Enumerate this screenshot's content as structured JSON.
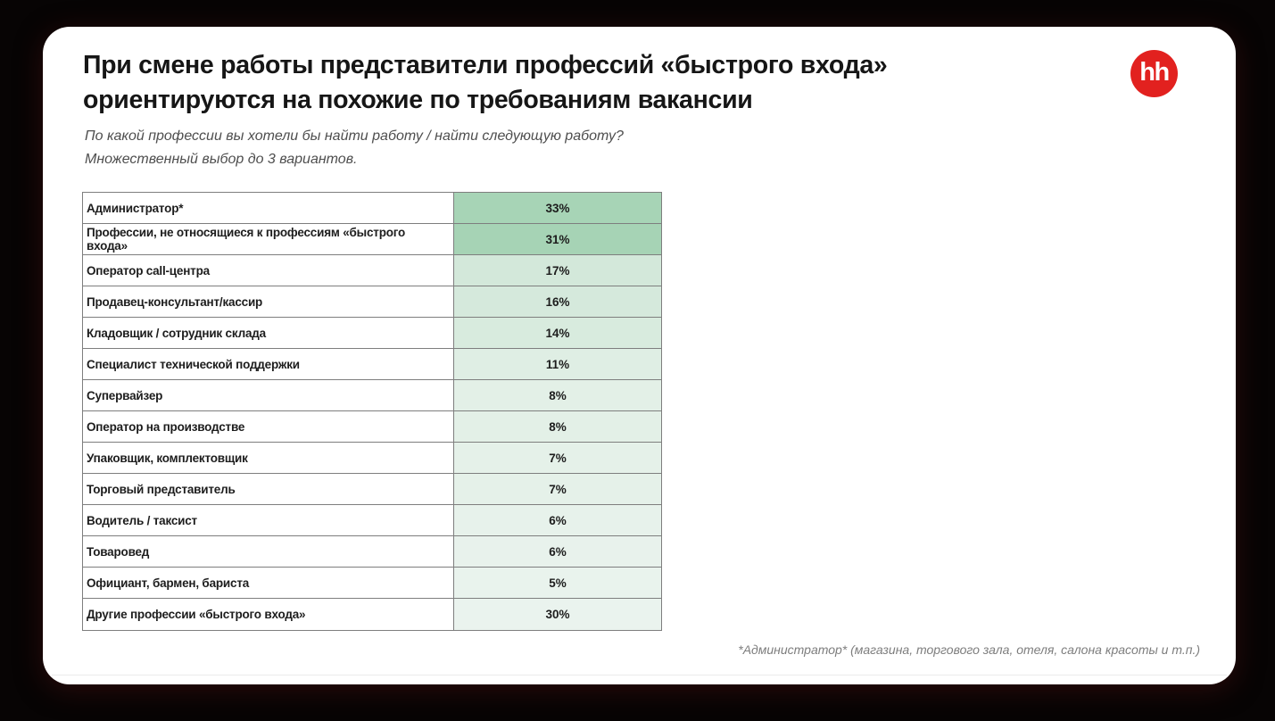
{
  "page": {
    "background_color": "#070404",
    "card_color": "#ffffff"
  },
  "logo": {
    "text": "hh",
    "background_color": "#e2211f",
    "text_color": "#ffffff"
  },
  "chart_data": {
    "type": "table",
    "title": "При смене работы представители профессий «быстрого входа» ориентируются на похожие по требованиям вакансии",
    "title_lines": [
      "При смене работы представители профессий «быстрого входа»",
      "ориентируются на похожие по требованиям вакансии"
    ],
    "subtitle_lines": [
      "По какой профессии вы хотели бы найти работу / найти следующую работу?",
      "Множественный выбор до 3 вариантов."
    ],
    "value_unit": "percent",
    "legend_position": "none",
    "grid": true,
    "rows": [
      {
        "label": "Администратор*",
        "value": 33,
        "display": "33%",
        "cell_color": "#a7d4b6"
      },
      {
        "label": "Профессии, не относящиеся к профессиям «быстрого входа»",
        "value": 31,
        "display": "31%",
        "cell_color": "#a6d3b5"
      },
      {
        "label": "Оператор call-центра",
        "value": 17,
        "display": "17%",
        "cell_color": "#d3e8da"
      },
      {
        "label": "Продавец-консультант/кассир",
        "value": 16,
        "display": "16%",
        "cell_color": "#d5e9dc"
      },
      {
        "label": "Кладовщик / сотрудник склада",
        "value": 14,
        "display": "14%",
        "cell_color": "#d8ebde"
      },
      {
        "label": "Специалист технической поддержки",
        "value": 11,
        "display": "11%",
        "cell_color": "#dfeee4"
      },
      {
        "label": "Супервайзер",
        "value": 8,
        "display": "8%",
        "cell_color": "#e3f0e7"
      },
      {
        "label": "Оператор на производстве",
        "value": 8,
        "display": "8%",
        "cell_color": "#e3f0e7"
      },
      {
        "label": "Упаковщик, комплектовщик",
        "value": 7,
        "display": "7%",
        "cell_color": "#e5f1e9"
      },
      {
        "label": "Торговый представитель",
        "value": 7,
        "display": "7%",
        "cell_color": "#e5f1e9"
      },
      {
        "label": "Водитель / таксист",
        "value": 6,
        "display": "6%",
        "cell_color": "#e7f2eb"
      },
      {
        "label": "Товаровед",
        "value": 6,
        "display": "6%",
        "cell_color": "#e8f2ec"
      },
      {
        "label": "Официант, бармен, бариста",
        "value": 5,
        "display": "5%",
        "cell_color": "#e9f3ed"
      },
      {
        "label": "Другие профессии «быстрого входа»",
        "value": 30,
        "display": "30%",
        "cell_color": "#eaf3ee"
      }
    ],
    "footnote": "*Администратор* (магазина, торгового зала, отеля, салона красоты и т.п.)"
  }
}
